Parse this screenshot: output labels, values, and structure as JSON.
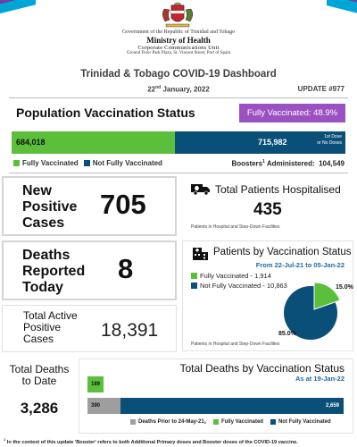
{
  "header": {
    "gov_line": "Government of the Republic of Trinidad and Tobago",
    "ministry": "Ministry of Health",
    "unit": "Corporate Communications Unit",
    "address": "Ground Floor Park Plaza, St. Vincent Street, Port of Spain",
    "title": "Trinidad & Tobago COVID-19 Dashboard",
    "date_day": "22",
    "date_suffix": "nd",
    "date_rest": " January, 2022",
    "update": "UPDATE #977"
  },
  "vaccination": {
    "title": "Population Vaccination Status",
    "fully_badge": "Fully Vaccinated: 48.9%",
    "fully_fraction": 0.489,
    "fully_count": "684,018",
    "not_fully_count": "715,982",
    "first_dose_note_1": "1st Dose",
    "first_dose_note_2": "or No Doses",
    "legend_fully": "Fully Vaccinated",
    "legend_not_fully": "Not Fully Vaccinated",
    "boosters_label": "Boosters",
    "boosters_sup": "1",
    "boosters_suffix": " Administered:",
    "boosters_value": "104,549",
    "color_fully": "#5cbf3c",
    "color_not_fully": "#0a4f78"
  },
  "new_positive": {
    "line1": "New",
    "line2": "Positive",
    "line3": "Cases",
    "value": "705"
  },
  "hospitalised": {
    "icon": "ambulance-icon",
    "title": "Total Patients Hospitalised",
    "value": "435",
    "note": "Patients in Hospital and Step-Down Facilities"
  },
  "deaths_today": {
    "line1": "Deaths",
    "line2": "Reported",
    "line3": "Today",
    "value": "8"
  },
  "patients_by_vax": {
    "icon": "hospital-building-icon",
    "title": "Patients by Vaccination Status",
    "range": "From 22-Jul-21 to 05-Jan-22",
    "fully": "Fully Vaccinated - 1,914",
    "not_fully": "Not Fully Vaccinated - 10,863",
    "pie_fully_pct": "15.0%",
    "pie_not_fully_pct": "85.0%",
    "note": "Patients in Hospital and Step-Down Facilities"
  },
  "active_cases": {
    "line1": "Total Active",
    "line2": "Positive",
    "line3": "Cases",
    "value": "18,391"
  },
  "total_deaths": {
    "line1": "Total Deaths",
    "line2": "to Date",
    "value": "3,286"
  },
  "deaths_by_vax": {
    "title": "Total Deaths by Vaccination Status",
    "as_of": "As at 19-Jan-22",
    "legend_prior": "Deaths Prior to 24-May-21",
    "legend_prior_sup": "2",
    "legend_fully": "Fully Vaccinated",
    "legend_not_fully": "Not Fully Vaccinated",
    "color_prior": "#9e9e9e"
  },
  "chart_data": {
    "type": "bar",
    "orientation": "horizontal-stacked",
    "title": "Total Deaths by Vaccination Status",
    "subtitle": "As at 19-Jan-22",
    "rows": [
      {
        "segments": [
          {
            "series": "Fully Vaccinated",
            "value": 189
          }
        ]
      },
      {
        "segments": [
          {
            "series": "Deaths Prior to 24-May-21",
            "value": 390
          },
          {
            "series": "Not Fully Vaccinated",
            "value": 2659
          }
        ]
      }
    ],
    "series": [
      {
        "name": "Deaths Prior to 24-May-21",
        "color": "#9e9e9e"
      },
      {
        "name": "Fully Vaccinated",
        "color": "#5cbf3c"
      },
      {
        "name": "Not Fully Vaccinated",
        "color": "#0a4f78"
      }
    ],
    "legend": "bottom",
    "grid": false
  },
  "footnote": {
    "sup": "1",
    "text": " In the context of this update 'Booster' refers to both Additional Primary doses and Booster doses of the COVID-19 vaccine."
  }
}
